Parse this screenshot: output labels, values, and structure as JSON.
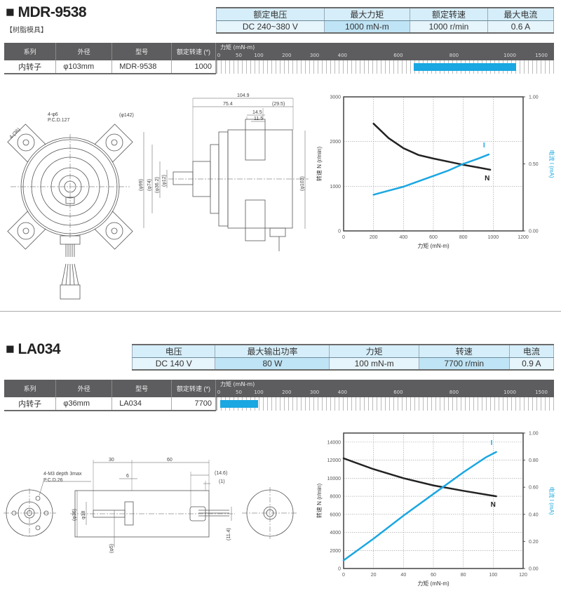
{
  "product_table_headers": [
    "系列",
    "外径",
    "型号",
    "额定转速 (*)"
  ],
  "torque_header": "力矩 (mN-m)",
  "torque_ticks": [
    0,
    50,
    100,
    200,
    300,
    400,
    600,
    800,
    1000,
    1500
  ],
  "bar_color": "#1aa7e2",
  "sections": [
    {
      "title": "■ MDR-9538",
      "subtitle": "【树脂模具】",
      "specs": [
        {
          "label": "额定电压",
          "value": "DC 240~380 V",
          "highlight": false
        },
        {
          "label": "最大力矩",
          "value": "1000 mN-m",
          "highlight": true
        },
        {
          "label": "额定转速",
          "value": "1000 r/min",
          "highlight": false
        },
        {
          "label": "最大电流",
          "value": "0.6 A",
          "highlight": false
        }
      ],
      "row": {
        "series": "内转子",
        "diameter": "φ103mm",
        "model": "MDR-9538",
        "speed": "1000"
      },
      "torque_range": [
        650,
        1080
      ],
      "torque_rated": 1000,
      "drawing": {
        "front_labels": [
          "4-φ6",
          "P.C.D.127",
          "(φ142)",
          "4-(36)"
        ],
        "dims": [
          "104.9",
          "75.4",
          "(29.5)",
          "14.5",
          "11.5",
          "(φ99)",
          "(φ74)",
          "(φ36.2)",
          "(φ12)",
          "(φ103)"
        ]
      }
    },
    {
      "title": "■ LA034",
      "subtitle": "",
      "specs": [
        {
          "label": "电压",
          "value": "DC 140 V",
          "highlight": false
        },
        {
          "label": "最大输出功率",
          "value": "80 W",
          "highlight": true
        },
        {
          "label": "力矩",
          "value": "100 mN-m",
          "highlight": false
        },
        {
          "label": "转速",
          "value": "7700 r/min",
          "highlight": true
        },
        {
          "label": "电流",
          "value": "0.9 A",
          "highlight": false
        }
      ],
      "row": {
        "series": "内转子",
        "diameter": "φ36mm",
        "model": "LA034",
        "speed": "7700"
      },
      "torque_range": [
        0,
        95
      ],
      "torque_rated": 100,
      "drawing": {
        "front_labels": [
          "4-M3 depth 3max",
          "P.C.D.26"
        ],
        "dims": [
          "30",
          "60",
          "6",
          "(14.6)",
          "(1)",
          "(φ36)",
          "φ18",
          "(φ5)",
          "(11.4)"
        ]
      }
    }
  ],
  "chart_data": [
    {
      "type": "line",
      "xlabel": "力矩 (mN-m)",
      "ylabel": "转速 N (r/min)",
      "y2label": "电流 I (mA)",
      "xlim": [
        0,
        1200
      ],
      "ylim": [
        0,
        3000
      ],
      "y2lim": [
        0,
        1.0
      ],
      "xticks": [
        0,
        200,
        400,
        600,
        800,
        1000,
        1200
      ],
      "yticks": [
        0,
        1000,
        2000,
        3000
      ],
      "y2ticks": [
        "0.00",
        "0.50",
        "1.00"
      ],
      "grid": true,
      "series": [
        {
          "name": "N",
          "axis": "left",
          "color": "#222222",
          "x": [
            200,
            300,
            400,
            500,
            600,
            700,
            800,
            900,
            980
          ],
          "y": [
            2400,
            2080,
            1850,
            1700,
            1620,
            1550,
            1480,
            1420,
            1370
          ]
        },
        {
          "name": "I",
          "axis": "right",
          "color": "#1aa7e2",
          "x": [
            200,
            300,
            400,
            500,
            600,
            700,
            800,
            900,
            970
          ],
          "y": [
            0.27,
            0.3,
            0.33,
            0.37,
            0.41,
            0.45,
            0.5,
            0.54,
            0.57
          ]
        }
      ]
    },
    {
      "type": "line",
      "xlabel": "力矩 (mN-m)",
      "ylabel": "转速 N (r/min)",
      "y2label": "电流 I (mA)",
      "xlim": [
        0,
        120
      ],
      "ylim": [
        0,
        15000
      ],
      "y2lim": [
        0,
        1.0
      ],
      "xticks": [
        0,
        20,
        40,
        60,
        80,
        100,
        120
      ],
      "yticks": [
        0,
        2000,
        4000,
        6000,
        8000,
        10000,
        12000,
        14000
      ],
      "y2ticks": [
        "0.00",
        "0.20",
        "0.40",
        "0.60",
        "0.80",
        "1.00"
      ],
      "grid": true,
      "series": [
        {
          "name": "N",
          "axis": "left",
          "color": "#222222",
          "x": [
            0,
            20,
            40,
            60,
            80,
            102
          ],
          "y": [
            12200,
            11000,
            10000,
            9200,
            8600,
            8000
          ]
        },
        {
          "name": "I",
          "axis": "right",
          "color": "#1aa7e2",
          "x": [
            0,
            20,
            40,
            60,
            80,
            95,
            102
          ],
          "y": [
            0.06,
            0.22,
            0.39,
            0.55,
            0.71,
            0.82,
            0.86
          ]
        }
      ]
    }
  ]
}
